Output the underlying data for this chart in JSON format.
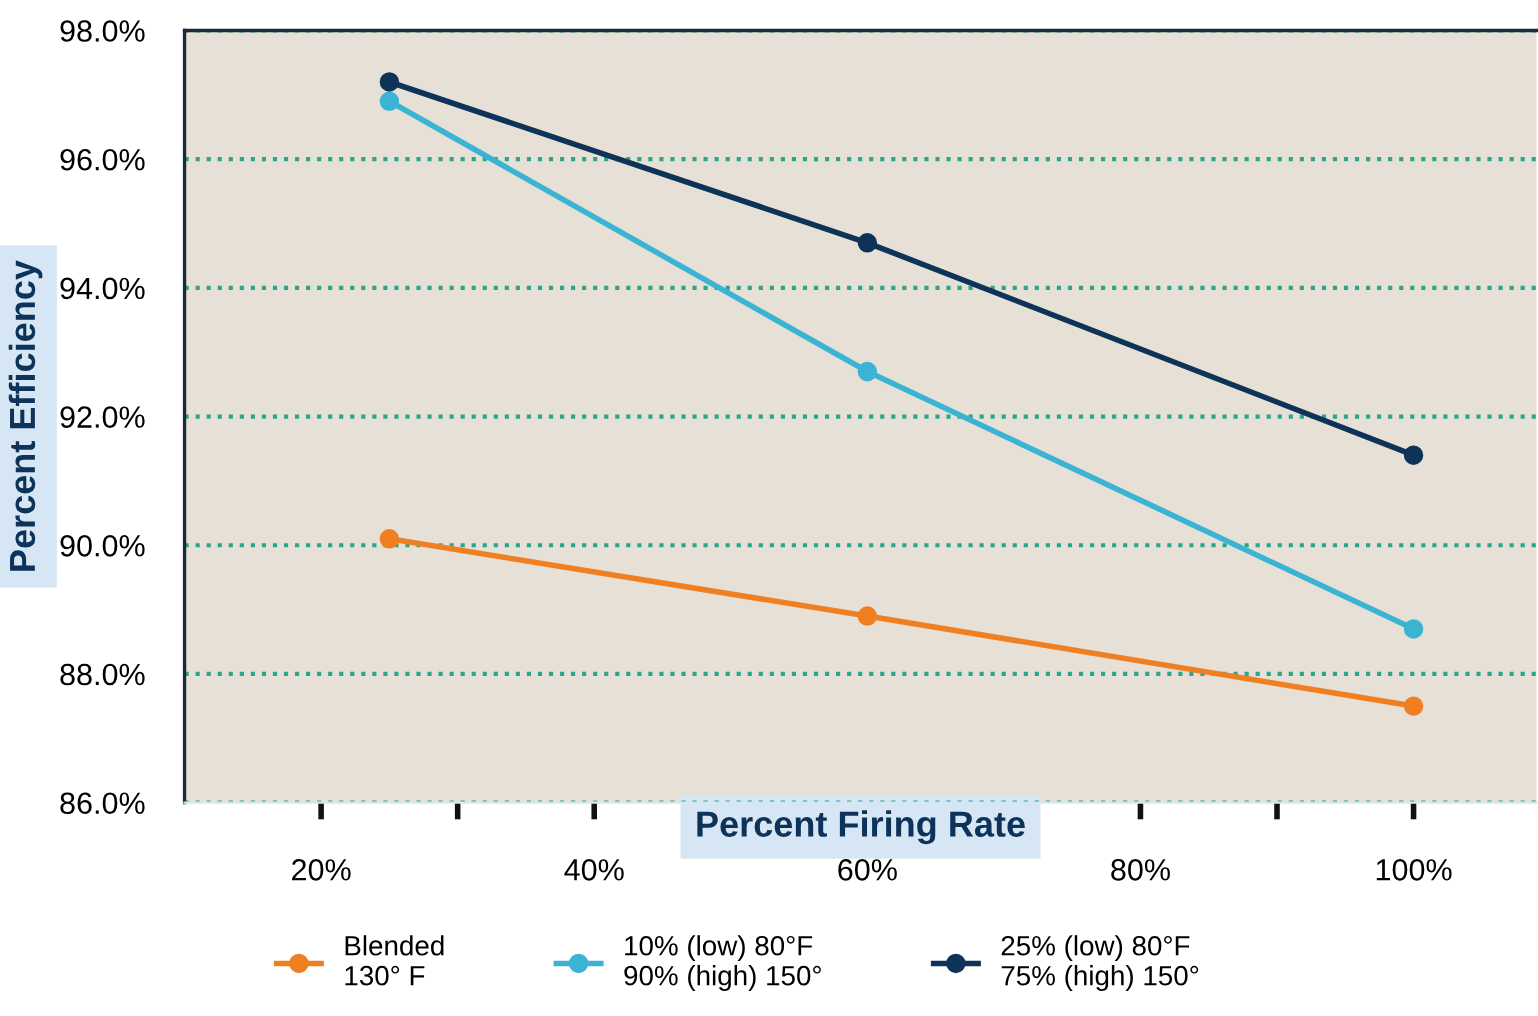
{
  "chart_data": {
    "type": "line",
    "xlabel": "Percent Firing Rate",
    "ylabel": "Percent Efficiency",
    "x": [
      25,
      60,
      100
    ],
    "series": [
      {
        "name": "Blended\n130° F",
        "color": "#f07f22",
        "values": [
          90.1,
          88.9,
          87.5
        ]
      },
      {
        "name": "10% (low) 80°F\n90% (high) 150°",
        "color": "#3bb4d4",
        "values": [
          96.9,
          92.7,
          88.7
        ]
      },
      {
        "name": "25% (low) 80°F\n75% (high) 150°",
        "color": "#0d3358",
        "values": [
          97.2,
          94.7,
          91.4
        ]
      }
    ],
    "xlim": [
      10,
      109
    ],
    "xticks": [
      {
        "value": 20,
        "label": "20%"
      },
      {
        "value": 30,
        "label": null
      },
      {
        "value": 40,
        "label": "40%"
      },
      {
        "value": 50,
        "label": null
      },
      {
        "value": 60,
        "label": "60%"
      },
      {
        "value": 70,
        "label": null
      },
      {
        "value": 80,
        "label": "80%"
      },
      {
        "value": 90,
        "label": null
      },
      {
        "value": 100,
        "label": "100%"
      }
    ],
    "ylim": [
      86,
      98
    ],
    "yticks": [
      {
        "value": 86,
        "label": "86.0%"
      },
      {
        "value": 88,
        "label": "88.0%"
      },
      {
        "value": 90,
        "label": "90.0%"
      },
      {
        "value": 92,
        "label": "92.0%"
      },
      {
        "value": 94,
        "label": "94.0%"
      },
      {
        "value": 96,
        "label": "96.0%"
      },
      {
        "value": 98,
        "label": "98.0%"
      }
    ],
    "grid": "y",
    "legend": "bottom",
    "marker": "circle",
    "line_style": "solid"
  }
}
